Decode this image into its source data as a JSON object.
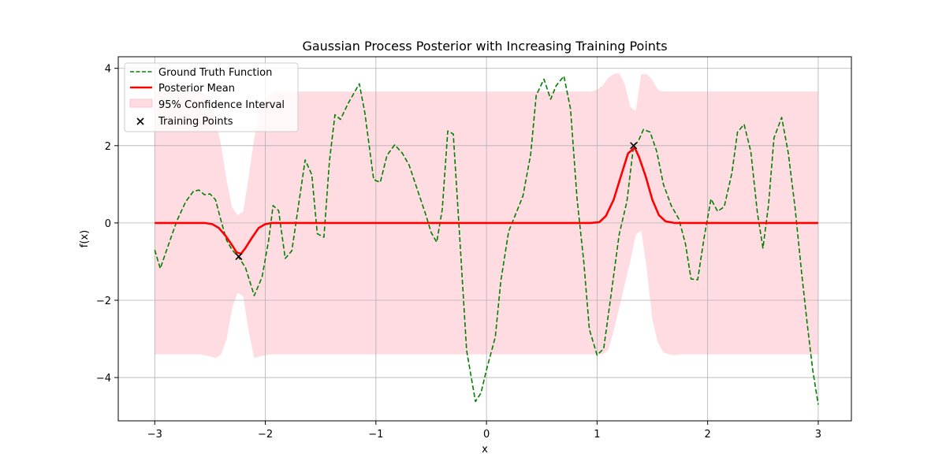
{
  "chart_data": {
    "type": "line",
    "title": "Gaussian Process Posterior with Increasing Training Points",
    "xlabel": "x",
    "ylabel": "f(x)",
    "xlim": [
      -3.33,
      3.3
    ],
    "ylim": [
      -5.12,
      4.3
    ],
    "xticks": [
      -3,
      -2,
      -1,
      0,
      1,
      2,
      3
    ],
    "xtick_labels": [
      "−3",
      "−2",
      "−1",
      "0",
      "1",
      "2",
      "3"
    ],
    "yticks": [
      -4,
      -2,
      0,
      2,
      4
    ],
    "ytick_labels": [
      "−4",
      "−2",
      "0",
      "2",
      "4"
    ],
    "grid": true,
    "legend_position": "top-left",
    "legend": [
      {
        "label": "Ground Truth Function",
        "color": "#008000",
        "style": "dashed-line"
      },
      {
        "label": "Posterior Mean",
        "color": "#ff0000",
        "style": "solid-line"
      },
      {
        "label": "95% Confidence Interval",
        "color": "#ffc0cb",
        "style": "patch"
      },
      {
        "label": "Training Points",
        "color": "#000000",
        "style": "x-marker"
      }
    ],
    "series": [
      {
        "name": "Ground Truth Function",
        "color": "#008000",
        "style": "dashed",
        "points": [
          [
            -3.0,
            -0.7
          ],
          [
            -2.95,
            -1.18
          ],
          [
            -2.88,
            -0.6
          ],
          [
            -2.8,
            0.05
          ],
          [
            -2.72,
            0.55
          ],
          [
            -2.65,
            0.82
          ],
          [
            -2.6,
            0.85
          ],
          [
            -2.55,
            0.73
          ],
          [
            -2.5,
            0.75
          ],
          [
            -2.45,
            0.6
          ],
          [
            -2.4,
            0.05
          ],
          [
            -2.35,
            -0.45
          ],
          [
            -2.3,
            -0.7
          ],
          [
            -2.25,
            -0.85
          ],
          [
            -2.18,
            -1.15
          ],
          [
            -2.1,
            -1.88
          ],
          [
            -2.03,
            -1.4
          ],
          [
            -1.97,
            -0.45
          ],
          [
            -1.93,
            0.45
          ],
          [
            -1.88,
            0.32
          ],
          [
            -1.82,
            -0.92
          ],
          [
            -1.76,
            -0.72
          ],
          [
            -1.7,
            0.45
          ],
          [
            -1.64,
            1.63
          ],
          [
            -1.58,
            1.25
          ],
          [
            -1.53,
            -0.28
          ],
          [
            -1.47,
            -0.37
          ],
          [
            -1.42,
            1.6
          ],
          [
            -1.37,
            2.8
          ],
          [
            -1.32,
            2.68
          ],
          [
            -1.25,
            3.1
          ],
          [
            -1.15,
            3.6
          ],
          [
            -1.1,
            2.85
          ],
          [
            -1.02,
            1.12
          ],
          [
            -0.96,
            1.05
          ],
          [
            -0.9,
            1.75
          ],
          [
            -0.83,
            2.02
          ],
          [
            -0.76,
            1.8
          ],
          [
            -0.7,
            1.5
          ],
          [
            -0.62,
            0.82
          ],
          [
            -0.55,
            0.22
          ],
          [
            -0.5,
            -0.25
          ],
          [
            -0.45,
            -0.5
          ],
          [
            -0.4,
            0.35
          ],
          [
            -0.35,
            2.38
          ],
          [
            -0.3,
            2.3
          ],
          [
            -0.24,
            -0.45
          ],
          [
            -0.18,
            -3.3
          ],
          [
            -0.1,
            -4.62
          ],
          [
            -0.05,
            -4.4
          ],
          [
            0.0,
            -3.8
          ],
          [
            0.08,
            -2.95
          ],
          [
            0.13,
            -1.5
          ],
          [
            0.2,
            -0.22
          ],
          [
            0.26,
            0.2
          ],
          [
            0.33,
            0.7
          ],
          [
            0.4,
            1.78
          ],
          [
            0.45,
            3.3
          ],
          [
            0.52,
            3.72
          ],
          [
            0.58,
            3.2
          ],
          [
            0.63,
            3.55
          ],
          [
            0.7,
            3.8
          ],
          [
            0.76,
            2.95
          ],
          [
            0.82,
            0.6
          ],
          [
            0.88,
            -1.0
          ],
          [
            0.93,
            -2.75
          ],
          [
            1.0,
            -3.42
          ],
          [
            1.06,
            -3.25
          ],
          [
            1.12,
            -2.0
          ],
          [
            1.2,
            -0.3
          ],
          [
            1.27,
            0.55
          ],
          [
            1.33,
            2.0
          ],
          [
            1.37,
            2.1
          ],
          [
            1.42,
            2.42
          ],
          [
            1.48,
            2.35
          ],
          [
            1.54,
            1.85
          ],
          [
            1.6,
            1.0
          ],
          [
            1.67,
            0.45
          ],
          [
            1.74,
            0.1
          ],
          [
            1.8,
            -0.55
          ],
          [
            1.85,
            -1.45
          ],
          [
            1.91,
            -1.47
          ],
          [
            1.97,
            -0.35
          ],
          [
            2.03,
            0.62
          ],
          [
            2.09,
            0.3
          ],
          [
            2.15,
            0.42
          ],
          [
            2.22,
            1.3
          ],
          [
            2.27,
            2.35
          ],
          [
            2.33,
            2.55
          ],
          [
            2.39,
            1.85
          ],
          [
            2.45,
            0.25
          ],
          [
            2.5,
            -0.65
          ],
          [
            2.55,
            0.45
          ],
          [
            2.6,
            2.2
          ],
          [
            2.67,
            2.73
          ],
          [
            2.73,
            1.8
          ],
          [
            2.79,
            0.4
          ],
          [
            2.85,
            -1.3
          ],
          [
            2.9,
            -2.6
          ],
          [
            2.95,
            -3.8
          ],
          [
            3.0,
            -4.7
          ]
        ]
      },
      {
        "name": "Posterior Mean",
        "color": "#ff0000",
        "style": "solid",
        "points": [
          [
            -3.0,
            0.0
          ],
          [
            -2.55,
            0.0
          ],
          [
            -2.48,
            -0.03
          ],
          [
            -2.42,
            -0.13
          ],
          [
            -2.36,
            -0.33
          ],
          [
            -2.3,
            -0.58
          ],
          [
            -2.26,
            -0.76
          ],
          [
            -2.22,
            -0.8
          ],
          [
            -2.18,
            -0.65
          ],
          [
            -2.12,
            -0.38
          ],
          [
            -2.06,
            -0.13
          ],
          [
            -2.0,
            -0.03
          ],
          [
            -1.94,
            0.0
          ],
          [
            0.94,
            0.0
          ],
          [
            1.02,
            0.02
          ],
          [
            1.08,
            0.18
          ],
          [
            1.15,
            0.6
          ],
          [
            1.22,
            1.25
          ],
          [
            1.28,
            1.8
          ],
          [
            1.34,
            1.95
          ],
          [
            1.38,
            1.7
          ],
          [
            1.44,
            1.2
          ],
          [
            1.5,
            0.6
          ],
          [
            1.56,
            0.2
          ],
          [
            1.62,
            0.04
          ],
          [
            1.7,
            0.0
          ],
          [
            3.0,
            0.0
          ]
        ]
      }
    ],
    "confidence_interval": {
      "name": "95% Confidence Interval",
      "color": "#ffc0cb",
      "x": [
        -3.0,
        -2.6,
        -2.55,
        -2.5,
        -2.45,
        -2.4,
        -2.35,
        -2.3,
        -2.25,
        -2.2,
        -2.15,
        -2.1,
        -2.05,
        -2.0,
        -1.95,
        -1.9,
        0.95,
        1.0,
        1.05,
        1.1,
        1.15,
        1.2,
        1.25,
        1.3,
        1.35,
        1.4,
        1.45,
        1.5,
        1.55,
        1.6,
        1.65,
        1.7,
        1.75,
        3.0
      ],
      "upper": [
        3.4,
        3.4,
        3.35,
        3.15,
        2.7,
        2.0,
        1.1,
        0.4,
        0.2,
        0.3,
        1.2,
        2.2,
        2.9,
        3.2,
        3.35,
        3.4,
        3.4,
        3.45,
        3.55,
        3.75,
        3.85,
        3.88,
        3.6,
        3.0,
        2.9,
        3.85,
        3.85,
        3.7,
        3.45,
        3.4,
        3.4,
        3.4,
        3.4,
        3.4
      ],
      "lower": [
        -3.4,
        -3.4,
        -3.42,
        -3.45,
        -3.5,
        -3.4,
        -3.0,
        -2.2,
        -1.8,
        -1.9,
        -2.8,
        -3.5,
        -3.45,
        -3.42,
        -3.4,
        -3.4,
        -3.4,
        -3.4,
        -3.4,
        -3.3,
        -2.8,
        -2.2,
        -1.6,
        -1.0,
        -0.3,
        -0.2,
        -1.2,
        -2.5,
        -3.1,
        -3.35,
        -3.4,
        -3.42,
        -3.4,
        -3.4
      ]
    },
    "training_points": {
      "name": "Training Points",
      "color": "#000000",
      "marker": "x",
      "points": [
        [
          -2.24,
          -0.87
        ],
        [
          1.33,
          2.0
        ]
      ]
    }
  }
}
